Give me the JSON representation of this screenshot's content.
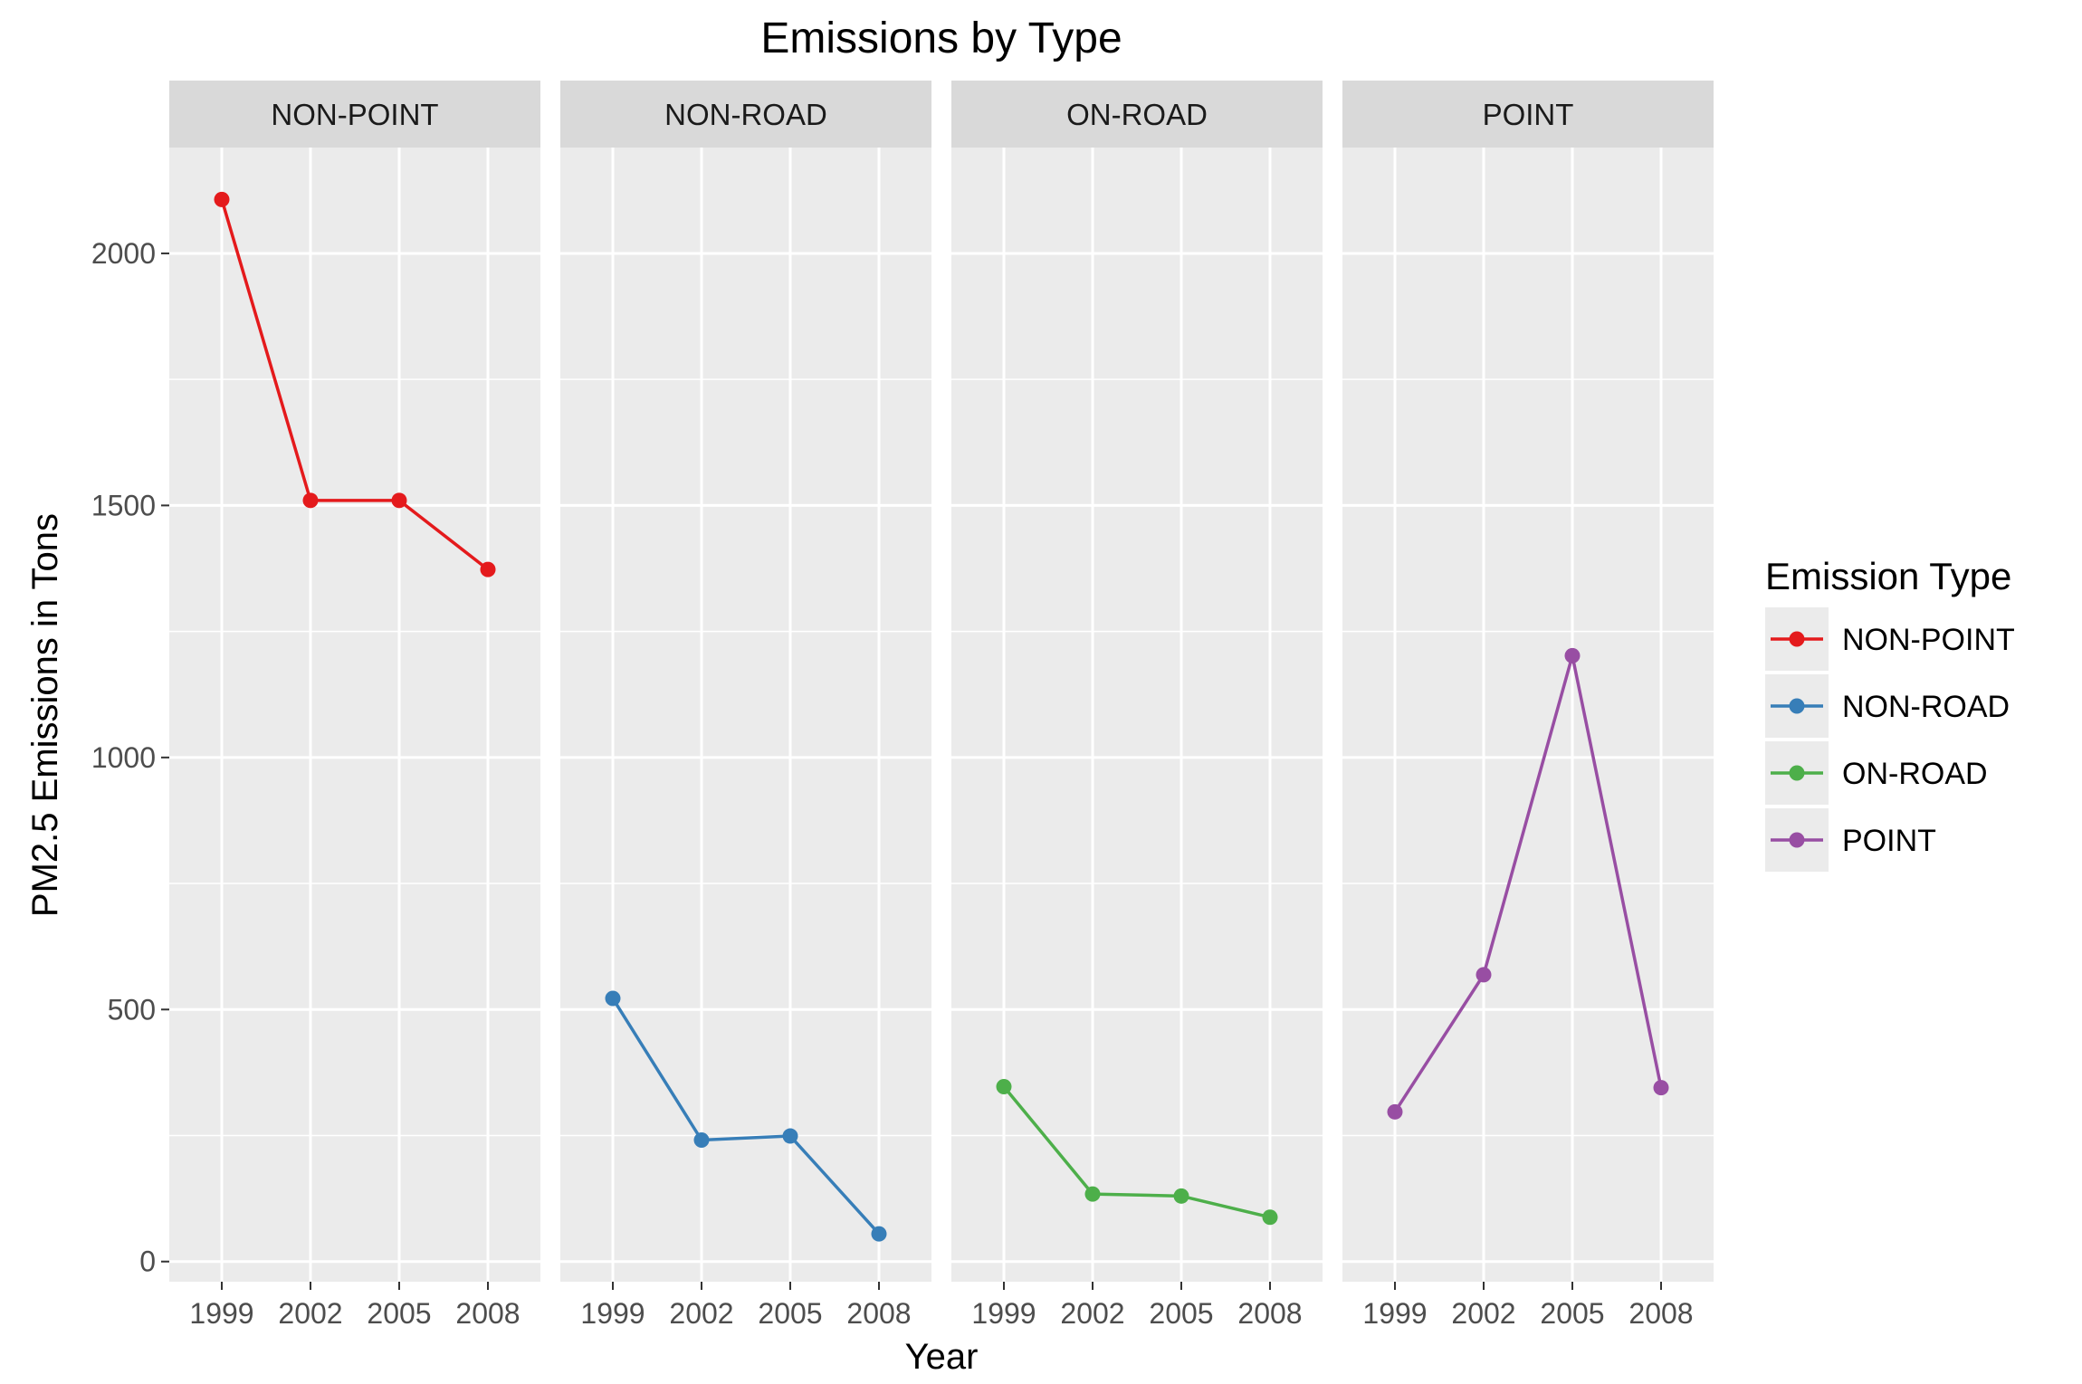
{
  "chart_data": {
    "type": "line",
    "title": "Emissions by Type",
    "xlabel": "Year",
    "ylabel": "PM2.5 Emissions in Tons",
    "x": [
      1999,
      2002,
      2005,
      2008
    ],
    "x_tick_labels": [
      "1999",
      "2002",
      "2005",
      "2008"
    ],
    "y_ticks": [
      0,
      500,
      1000,
      1500,
      2000
    ],
    "y_tick_labels": [
      "0",
      "500",
      "1000",
      "1500",
      "2000"
    ],
    "ylim": [
      -40,
      2210
    ],
    "grid": true,
    "legend": {
      "title": "Emission Type",
      "position": "right",
      "entries": [
        "NON-POINT",
        "NON-ROAD",
        "ON-ROAD",
        "POINT"
      ]
    },
    "facets": [
      {
        "name": "NON-POINT",
        "color": "#e41a1c",
        "values": [
          2107,
          1510,
          1510,
          1373
        ]
      },
      {
        "name": "NON-ROAD",
        "color": "#377eb8",
        "values": [
          522,
          241,
          249,
          55
        ]
      },
      {
        "name": "ON-ROAD",
        "color": "#4daf4a",
        "values": [
          347,
          134,
          130,
          88
        ]
      },
      {
        "name": "POINT",
        "color": "#984ea3",
        "values": [
          297,
          569,
          1202,
          345
        ]
      }
    ]
  }
}
